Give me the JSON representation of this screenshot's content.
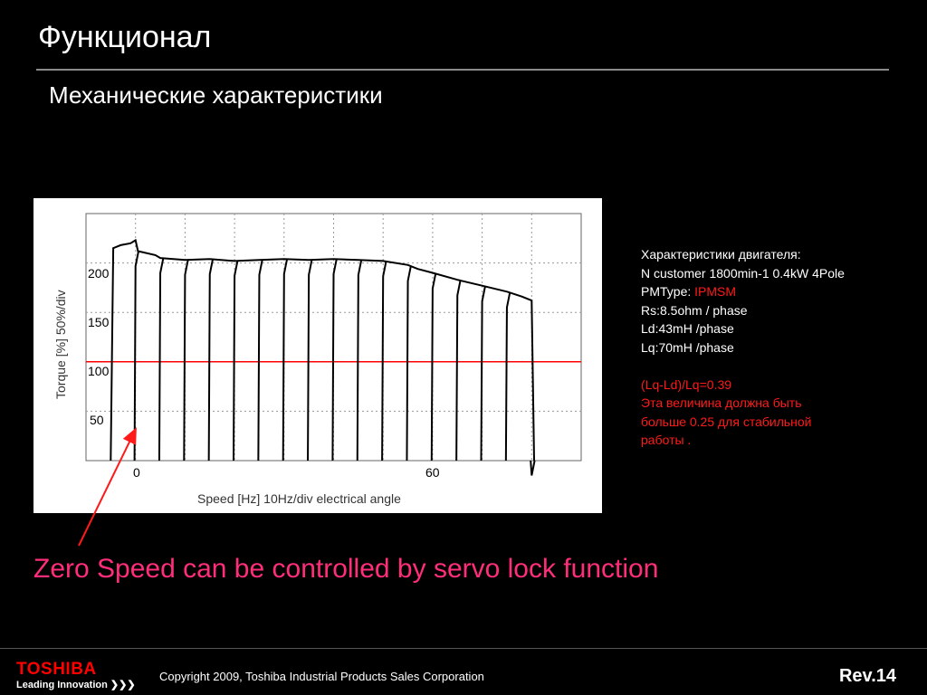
{
  "slide": {
    "title": "Функционал",
    "subtitle": "Механические характеристики"
  },
  "chart_data": {
    "type": "line",
    "xlabel": "Speed [Hz]  10Hz/div electrical angle",
    "ylabel": "Torque [%]  50%/div",
    "x_tick_labels": [
      "0",
      "60"
    ],
    "y_tick_labels": [
      "200",
      "150",
      "100",
      "50"
    ],
    "grid": true,
    "reference_line": {
      "y": 100,
      "color": "#ff0000"
    },
    "series": [
      {
        "color": "#000000",
        "x": [
          -5,
          -4.5,
          -3,
          -1,
          0,
          0.5,
          4,
          5,
          10,
          15,
          20,
          25,
          30,
          35,
          40,
          45,
          50,
          55,
          57,
          60,
          65,
          70,
          75,
          78,
          80,
          80.5
        ],
        "y": [
          0,
          215,
          218,
          220,
          223,
          212,
          208,
          205,
          203,
          204,
          202,
          203,
          204,
          203,
          204,
          203,
          202,
          198,
          194,
          190,
          183,
          177,
          171,
          166,
          162,
          0
        ]
      }
    ],
    "drop_x": [
      0,
      5,
      10,
      15,
      20,
      25,
      30,
      35,
      40,
      45,
      50,
      55,
      60,
      65,
      70,
      75,
      80
    ]
  },
  "specs": {
    "heading": "Характеристики двигателя:",
    "line1": "N customer 1800min-1 0.4kW 4Pole",
    "pm_label": "PMType: ",
    "pm_value": "IPMSM",
    "rs": "Rs:8.5ohm / phase",
    "ld": "Ld:43mH /phase",
    "lq": "Lq:70mH /phase",
    "ratio": "(Lq-Ld)/Lq=0.39",
    "note1": "Эта величина должна быть",
    "note2": "больше  0.25  для стабильной",
    "note3": "работы ."
  },
  "callout": {
    "text": "Zero Speed can be controlled by servo lock function",
    "color": "#ff2d7a"
  },
  "footer": {
    "logo_word": "TOSHIBA",
    "logo_tag": "Leading Innovation ❯❯❯",
    "copyright": "Copyright 2009, Toshiba Industrial Products Sales Corporation",
    "rev": "Rev.14"
  }
}
